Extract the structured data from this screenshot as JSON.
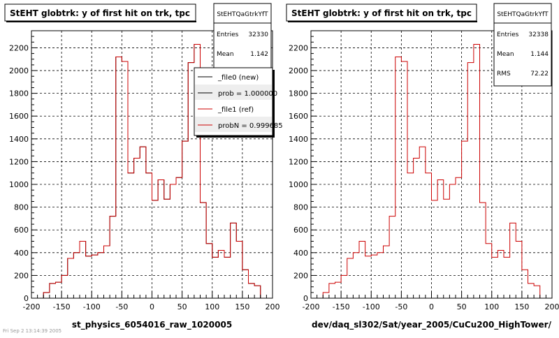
{
  "chart_data": [
    {
      "type": "histogram",
      "title": "StEHT globtrk: y of first hit on trk, tpc",
      "xlabel": "st_physics_6054016_raw_1020005",
      "xlim": [
        -200,
        200
      ],
      "ylim": [
        0,
        2350
      ],
      "x_ticks": [
        "-200",
        "-150",
        "-100",
        "-50",
        "0",
        "50",
        "100",
        "150",
        "200"
      ],
      "y_ticks": [
        "0",
        "200",
        "400",
        "600",
        "800",
        "1000",
        "1200",
        "1400",
        "1600",
        "1800",
        "2000",
        "2200"
      ],
      "grid": true,
      "bin_edges": [
        -200,
        -190,
        -180,
        -170,
        -160,
        -150,
        -140,
        -130,
        -120,
        -110,
        -100,
        -90,
        -80,
        -70,
        -60,
        -50,
        -40,
        -30,
        -20,
        -10,
        0,
        10,
        20,
        30,
        40,
        50,
        60,
        70,
        80,
        90,
        100,
        110,
        120,
        130,
        140,
        150,
        160,
        170,
        180,
        190,
        200
      ],
      "series": [
        {
          "name": "_file0 (new)",
          "color": "#000000",
          "values": [
            0,
            0,
            50,
            130,
            140,
            200,
            350,
            400,
            500,
            370,
            380,
            400,
            460,
            720,
            2120,
            2080,
            1100,
            1230,
            1330,
            1100,
            860,
            1040,
            870,
            1000,
            1060,
            1380,
            2070,
            2230,
            840,
            480,
            360,
            420,
            360,
            660,
            500,
            250,
            130,
            110,
            0,
            0
          ]
        },
        {
          "name": "_file1 (ref)",
          "color": "#cc0000",
          "values": [
            0,
            0,
            50,
            130,
            140,
            200,
            350,
            400,
            500,
            370,
            380,
            400,
            460,
            720,
            2120,
            2080,
            1100,
            1230,
            1330,
            1100,
            860,
            1040,
            870,
            1000,
            1060,
            1380,
            2070,
            2230,
            840,
            480,
            360,
            420,
            360,
            660,
            500,
            250,
            130,
            110,
            0,
            0
          ]
        }
      ],
      "stats": {
        "box_title": "StEHTQaGtrkYfT",
        "rows": [
          {
            "label": "Entries",
            "value": "32330"
          },
          {
            "label": "Mean",
            "value": "1.142"
          }
        ]
      },
      "legend": {
        "placement": "top-right",
        "entries": [
          {
            "label": "_file0 (new)",
            "color": "#000000"
          },
          {
            "label": "prob = 1.000000",
            "color": "#000000"
          },
          {
            "label": "_file1 (ref)",
            "color": "#cc0000"
          },
          {
            "label": "probN = 0.999685",
            "color": "#cc0000"
          }
        ]
      }
    },
    {
      "type": "histogram",
      "title": "StEHT globtrk: y of first hit on trk, tpc",
      "xlabel": "dev/daq_sl302/Sat/year_2005/CuCu200_HighTower/",
      "xlim": [
        -200,
        200
      ],
      "ylim": [
        0,
        2350
      ],
      "x_ticks": [
        "-200",
        "-150",
        "-100",
        "-50",
        "0",
        "50",
        "100",
        "150",
        "200"
      ],
      "y_ticks": [
        "0",
        "200",
        "400",
        "600",
        "800",
        "1000",
        "1200",
        "1400",
        "1600",
        "1800",
        "2000",
        "2200"
      ],
      "grid": true,
      "bin_edges": [
        -200,
        -190,
        -180,
        -170,
        -160,
        -150,
        -140,
        -130,
        -120,
        -110,
        -100,
        -90,
        -80,
        -70,
        -60,
        -50,
        -40,
        -30,
        -20,
        -10,
        0,
        10,
        20,
        30,
        40,
        50,
        60,
        70,
        80,
        90,
        100,
        110,
        120,
        130,
        140,
        150,
        160,
        170,
        180,
        190,
        200
      ],
      "series": [
        {
          "name": "",
          "color": "#cc0000",
          "values": [
            0,
            0,
            50,
            130,
            140,
            200,
            350,
            400,
            500,
            370,
            380,
            400,
            460,
            720,
            2120,
            2080,
            1100,
            1230,
            1330,
            1100,
            860,
            1040,
            870,
            1000,
            1060,
            1380,
            2070,
            2230,
            840,
            480,
            360,
            420,
            360,
            660,
            500,
            250,
            130,
            110,
            0,
            0
          ]
        }
      ],
      "stats": {
        "box_title": "StEHTQaGtrkYfT",
        "rows": [
          {
            "label": "Entries",
            "value": "32338"
          },
          {
            "label": "Mean",
            "value": "1.144"
          },
          {
            "label": "RMS",
            "value": "72.22"
          }
        ]
      }
    }
  ],
  "footer": {
    "date_text": "Fri Sep  2 13:14:39 2005"
  }
}
